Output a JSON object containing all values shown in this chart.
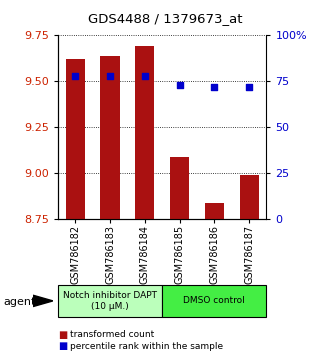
{
  "title": "GDS4488 / 1379673_at",
  "samples": [
    "GSM786182",
    "GSM786183",
    "GSM786184",
    "GSM786185",
    "GSM786186",
    "GSM786187"
  ],
  "bar_values": [
    9.62,
    9.64,
    9.69,
    9.09,
    8.84,
    8.99
  ],
  "percentile_values": [
    78,
    78,
    78,
    73,
    72,
    72
  ],
  "ylim_left": [
    8.75,
    9.75
  ],
  "ylim_right": [
    0,
    100
  ],
  "yticks_left": [
    8.75,
    9.0,
    9.25,
    9.5,
    9.75
  ],
  "yticks_right": [
    0,
    25,
    50,
    75,
    100
  ],
  "bar_color": "#aa1111",
  "dot_color": "#0000cc",
  "bg_color": "#ffffff",
  "agent_groups": [
    {
      "label": "Notch inhibitor DAPT\n(10 μM.)",
      "samples": [
        0,
        1,
        2
      ],
      "color": "#bbffbb"
    },
    {
      "label": "DMSO control",
      "samples": [
        3,
        4,
        5
      ],
      "color": "#44ee44"
    }
  ],
  "legend_bar_label": "transformed count",
  "legend_dot_label": "percentile rank within the sample",
  "agent_label": "agent",
  "ylabel_left_color": "#cc2200",
  "ylabel_right_color": "#0000cc"
}
